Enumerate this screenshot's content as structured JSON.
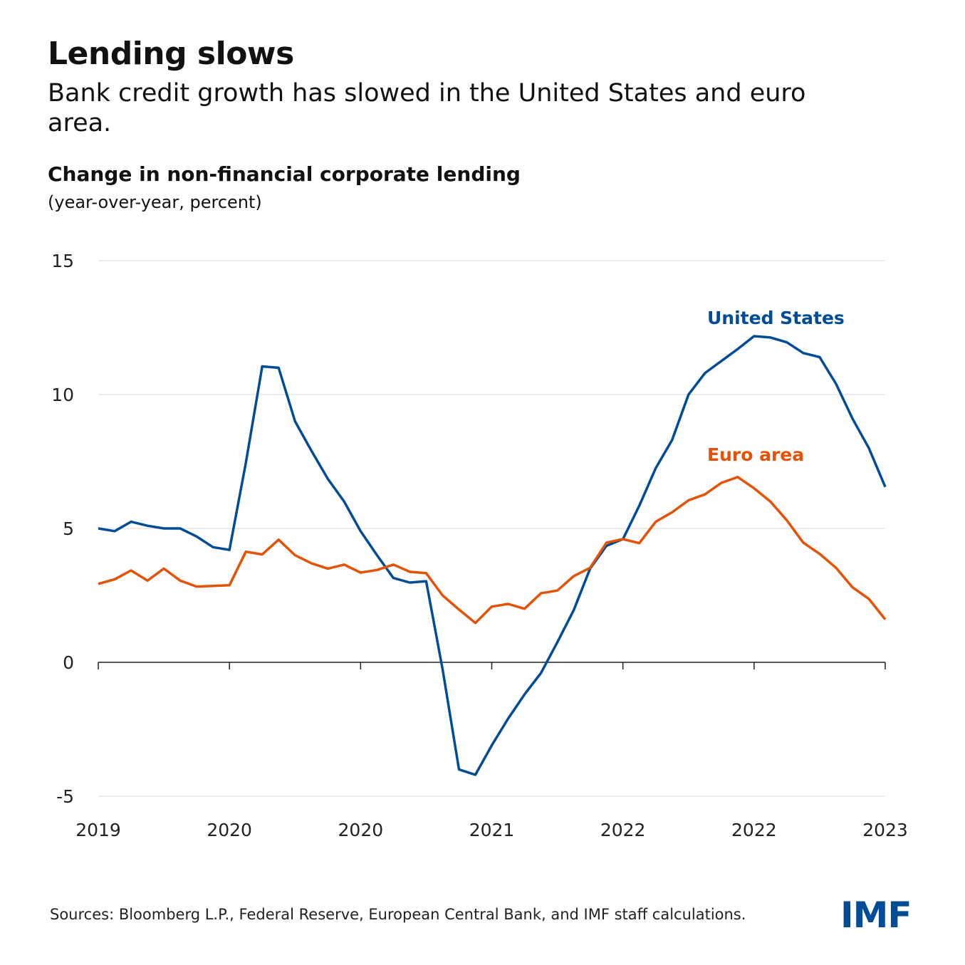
{
  "title": "Lending slows",
  "subtitle": "Bank credit growth has slowed in the United States and euro area.",
  "source": "Sources: Bloomberg L.P., Federal Reserve, European Central Bank, and IMF staff calculations.",
  "logo": "IMF",
  "colors": {
    "us": "#004c97",
    "euro": "#e35205",
    "grid": "#d9d9d9",
    "axis": "#222222"
  },
  "chart_data": {
    "type": "line",
    "title": "Change in non-financial corporate lending",
    "subtitle": "(year-over-year, percent)",
    "ylim": [
      -5,
      15
    ],
    "y_ticks": [
      15,
      10,
      5,
      0,
      -5
    ],
    "x_tick_labels": [
      "2019",
      "2020",
      "2020",
      "2021",
      "2022",
      "2022",
      "2023"
    ],
    "grid": "horizontal",
    "legend": "inline labels",
    "series": [
      {
        "name": "United States",
        "color": "#004c97",
        "values": [
          5.0,
          4.9,
          5.25,
          5.1,
          5.0,
          5.0,
          4.7,
          4.3,
          4.2,
          7.45,
          11.05,
          11.0,
          9.0,
          7.9,
          6.85,
          6.0,
          4.9,
          4.0,
          3.15,
          2.98,
          3.03,
          -0.25,
          -4.0,
          -4.2,
          -3.1,
          -2.1,
          -1.2,
          -0.4,
          0.75,
          1.95,
          3.5,
          4.35,
          4.6,
          5.85,
          7.25,
          8.3,
          10.0,
          10.8,
          11.25,
          11.7,
          12.18,
          12.13,
          11.95,
          11.55,
          11.4,
          10.4,
          9.1,
          8.0,
          6.55
        ]
      },
      {
        "name": "Euro area",
        "color": "#e35205",
        "values": [
          2.93,
          3.1,
          3.43,
          3.05,
          3.5,
          3.05,
          2.83,
          2.85,
          2.88,
          4.13,
          4.03,
          4.58,
          4.0,
          3.7,
          3.5,
          3.65,
          3.35,
          3.45,
          3.65,
          3.38,
          3.33,
          2.5,
          1.97,
          1.47,
          2.08,
          2.18,
          2.0,
          2.58,
          2.68,
          3.22,
          3.53,
          4.47,
          4.6,
          4.45,
          5.25,
          5.6,
          6.05,
          6.27,
          6.7,
          6.92,
          6.5,
          6.0,
          5.3,
          4.47,
          4.05,
          3.53,
          2.8,
          2.37,
          1.6
        ]
      }
    ]
  }
}
